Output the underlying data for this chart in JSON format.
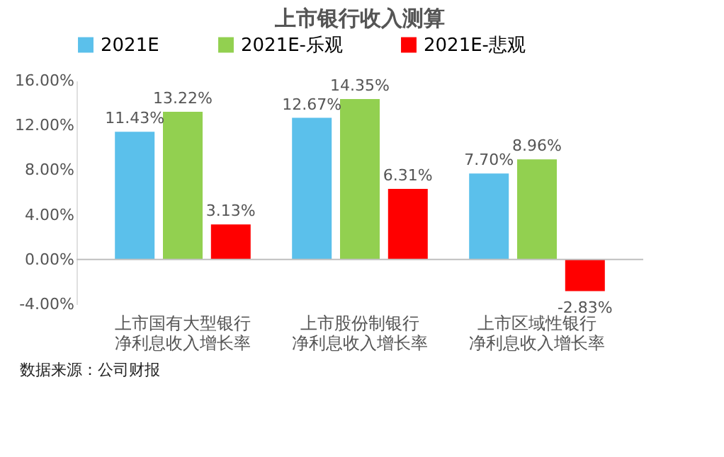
{
  "chart_data": {
    "type": "bar",
    "title": "上市银行收入测算",
    "categories": [
      "上市国有大型银行净利息收入增长率",
      "上市股份制银行净利息收入增长率",
      "上市区域性银行净利息收入增长率"
    ],
    "series": [
      {
        "name": "2021E",
        "color": "#5bc0eb",
        "values": [
          11.43,
          12.67,
          7.7
        ],
        "value_labels": [
          "11.43%",
          "12.67%",
          "7.70%"
        ]
      },
      {
        "name": "2021E-乐观",
        "color": "#92d050",
        "values": [
          13.22,
          14.35,
          8.96
        ],
        "value_labels": [
          "13.22%",
          "14.35%",
          "8.96%"
        ]
      },
      {
        "name": "2021E-悲观",
        "color": "#ff0000",
        "values": [
          3.13,
          6.31,
          -2.83
        ],
        "value_labels": [
          "3.13%",
          "6.31%",
          "-2.83%"
        ]
      }
    ],
    "ylim": [
      -4,
      16
    ],
    "yticks": [
      {
        "value": -4,
        "label": "-4.00%"
      },
      {
        "value": 0,
        "label": "0.00%"
      },
      {
        "value": 4,
        "label": "4.00%"
      },
      {
        "value": 8,
        "label": "8.00%"
      },
      {
        "value": 12,
        "label": "12.00%"
      },
      {
        "value": 16,
        "label": "16.00%"
      }
    ],
    "legend": "top left",
    "grid": false,
    "ref_lines": [
      {
        "axis": "y",
        "value": 0,
        "color": "#bfbfbf"
      }
    ],
    "annotations": [
      "数据来源：公司财报"
    ]
  }
}
